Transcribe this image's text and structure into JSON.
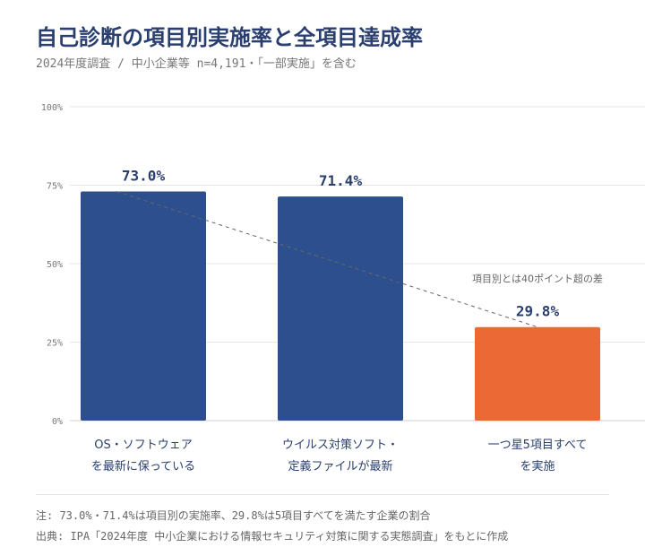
{
  "title": "自己診断の項目別実施率と全項目達成率",
  "subtitle": "2024年度調査 / 中小企業等 n=4,191・「一部実施」を含む",
  "chart_data": {
    "type": "bar",
    "categories": [
      [
        "OS・ソフトウェア",
        "を最新に保っている"
      ],
      [
        "ウイルス対策ソフト・",
        "定義ファイルが最新"
      ],
      [
        "一つ星5項目すべて",
        "を実施"
      ]
    ],
    "values": [
      73.0,
      71.4,
      29.8
    ],
    "value_labels": [
      "73.0%",
      "71.4%",
      "29.8%"
    ],
    "colors": [
      "#2d4f8e",
      "#2d4f8e",
      "#ea6935"
    ],
    "yticks": [
      "0%",
      "25%",
      "50%",
      "75%",
      "100%"
    ],
    "ylim": [
      0,
      100
    ],
    "grid": true,
    "annotation": "項目別とは40ポイント超の差",
    "trend_line": {
      "from": 0,
      "to": 2,
      "style": "dashed"
    }
  },
  "notes": [
    "注: 73.0%・71.4%は項目別の実施率、29.8%は5項目すべてを満たす企業の割合",
    "出典: IPA「2024年度 中小企業における情報セキュリティ対策に関する実態調査」をもとに作成"
  ]
}
